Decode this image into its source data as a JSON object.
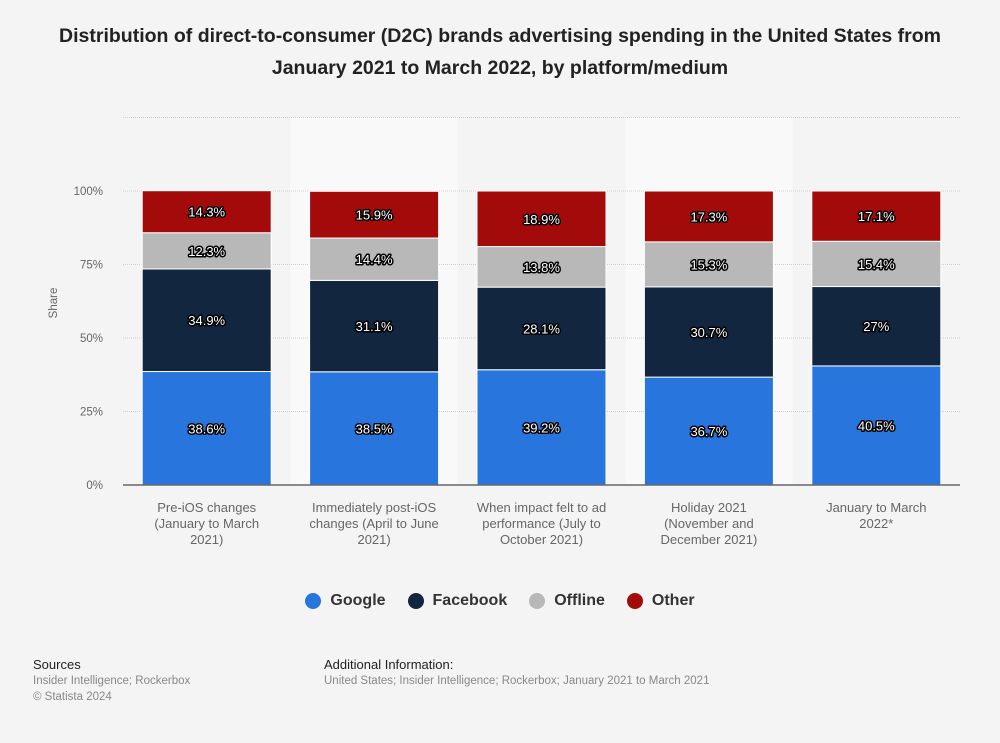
{
  "title": "Distribution of direct-to-consumer (D2C) brands advertising spending in the United States from January 2021 to March 2022, by platform/medium",
  "chart_data": {
    "type": "bar",
    "stacked": true,
    "title": "Distribution of direct-to-consumer (D2C) brands advertising spending in the United States from January 2021 to March 2022, by platform/medium",
    "xlabel": "",
    "ylabel": "Share",
    "ylim": [
      0,
      100
    ],
    "yticks": [
      "0%",
      "25%",
      "50%",
      "75%",
      "100%"
    ],
    "ytick_values": [
      0,
      25,
      50,
      75,
      100
    ],
    "grid": true,
    "legend_position": "bottom",
    "categories": [
      [
        "Pre-iOS changes",
        "(January to March",
        "2021)"
      ],
      [
        "Immediately post-iOS",
        "changes (April to June",
        "2021)"
      ],
      [
        "When impact felt to ad",
        "performance (July to",
        "October 2021)"
      ],
      [
        "Holiday 2021",
        "(November and",
        "December 2021)"
      ],
      [
        "January to March",
        "2022*"
      ]
    ],
    "series": [
      {
        "name": "Google",
        "color": "#2876dd",
        "values": [
          38.6,
          38.5,
          39.2,
          36.7,
          40.5
        ],
        "labels": [
          "38.6%",
          "38.5%",
          "39.2%",
          "36.7%",
          "40.5%"
        ]
      },
      {
        "name": "Facebook",
        "color": "#12263f",
        "values": [
          34.9,
          31.1,
          28.1,
          30.7,
          27
        ],
        "labels": [
          "34.9%",
          "31.1%",
          "28.1%",
          "30.7%",
          "27%"
        ]
      },
      {
        "name": "Offline",
        "color": "#b8b8b8",
        "values": [
          12.3,
          14.4,
          13.8,
          15.3,
          15.4
        ],
        "labels": [
          "12.3%",
          "14.4%",
          "13.8%",
          "15.3%",
          "15.4%"
        ]
      },
      {
        "name": "Other",
        "color": "#a30b0b",
        "values": [
          14.3,
          15.9,
          18.9,
          17.3,
          17.1
        ],
        "labels": [
          "14.3%",
          "15.9%",
          "18.9%",
          "17.3%",
          "17.1%"
        ]
      }
    ]
  },
  "legend": [
    {
      "name": "Google",
      "color": "#2876dd"
    },
    {
      "name": "Facebook",
      "color": "#12263f"
    },
    {
      "name": "Offline",
      "color": "#b8b8b8"
    },
    {
      "name": "Other",
      "color": "#a30b0b"
    }
  ],
  "footer": {
    "sources_heading": "Sources",
    "sources_text": "Insider Intelligence; Rockerbox",
    "copyright": "© Statista 2024",
    "additional_heading": "Additional Information:",
    "additional_text": "United States; Insider Intelligence; Rockerbox; January 2021 to March 2021"
  }
}
